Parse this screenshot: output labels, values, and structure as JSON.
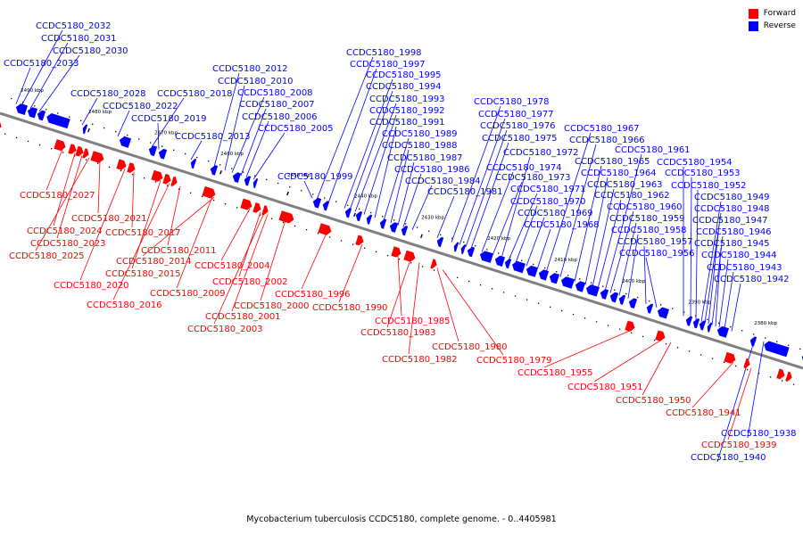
{
  "colors": {
    "forward": "#ff0000",
    "reverse": "#0000ff",
    "backbone": "#808080",
    "tick": "#000000"
  },
  "legend": {
    "forward_label": "Forward",
    "reverse_label": "Reverse"
  },
  "caption": "Mycobacterium tuberculosis CCDC5180, complete genome. - 0..4405981",
  "ticks": [
    "2490 kbp",
    "2480 kbp",
    "2470 kbp",
    "2460 kbp",
    "2450 kbp",
    "2440 kbp",
    "2430 kbp",
    "2420 kbp",
    "2410 kbp",
    "2400 kbp",
    "2390 kbp",
    "2380 kbp"
  ],
  "reverse_labels": [
    "CCDC5180_2032",
    "CCDC5180_2031",
    "CCDC5180_2030",
    "CCDC5180_2033",
    "CCDC5180_2028",
    "CCDC5180_2022",
    "CCDC5180_2018",
    "CCDC5180_2019",
    "CCDC5180_2013",
    "CCDC5180_2012",
    "CCDC5180_2010",
    "CCDC5180_2008",
    "CCDC5180_2007",
    "CCDC5180_2006",
    "CCDC5180_2005",
    "CCDC5180_1999",
    "CCDC5180_1998",
    "CCDC5180_1997",
    "CCDC5180_1995",
    "CCDC5180_1994",
    "CCDC5180_1993",
    "CCDC5180_1992",
    "CCDC5180_1991",
    "CCDC5180_1989",
    "CCDC5180_1988",
    "CCDC5180_1987",
    "CCDC5180_1986",
    "CCDC5180_1984",
    "CCDC5180_1981",
    "CCDC5180_1978",
    "CCDC5180_1977",
    "CCDC5180_1976",
    "CCDC5180_1975",
    "CCDC5180_1974",
    "CCDC5180_1973",
    "CCDC5180_1972",
    "CCDC5180_1971",
    "CCDC5180_1970",
    "CCDC5180_1969",
    "CCDC5180_1968",
    "CCDC5180_1967",
    "CCDC5180_1966",
    "CCDC5180_1965",
    "CCDC5180_1964",
    "CCDC5180_1963",
    "CCDC5180_1962",
    "CCDC5180_1961",
    "CCDC5180_1960",
    "CCDC5180_1959",
    "CCDC5180_1958",
    "CCDC5180_1957",
    "CCDC5180_1956",
    "CCDC5180_1954",
    "CCDC5180_1953",
    "CCDC5180_1952",
    "CCDC5180_1949",
    "CCDC5180_1948",
    "CCDC5180_1947",
    "CCDC5180_1946",
    "CCDC5180_1945",
    "CCDC5180_1944",
    "CCDC5180_1943",
    "CCDC5180_1942",
    "CCDC5180_1938",
    "CCDC5180_1940"
  ],
  "forward_labels": [
    "CCDC5180_2027",
    "CCDC5180_2024",
    "CCDC5180_2023",
    "CCDC5180_2025",
    "CCDC5180_2021",
    "CCDC5180_2017",
    "CCDC5180_2020",
    "CCDC5180_2016",
    "CCDC5180_2011",
    "CCDC5180_2014",
    "CCDC5180_2015",
    "CCDC5180_2009",
    "CCDC5180_2004",
    "CCDC5180_2002",
    "CCDC5180_2001",
    "CCDC5180_2003",
    "CCDC5180_2000",
    "CCDC5180_1996",
    "CCDC5180_1990",
    "CCDC5180_1985",
    "CCDC5180_1983",
    "CCDC5180_1982",
    "CCDC5180_1980",
    "CCDC5180_1979",
    "CCDC5180_1955",
    "CCDC5180_1951",
    "CCDC5180_1950",
    "CCDC5180_1941",
    "CCDC5180_1939"
  ]
}
